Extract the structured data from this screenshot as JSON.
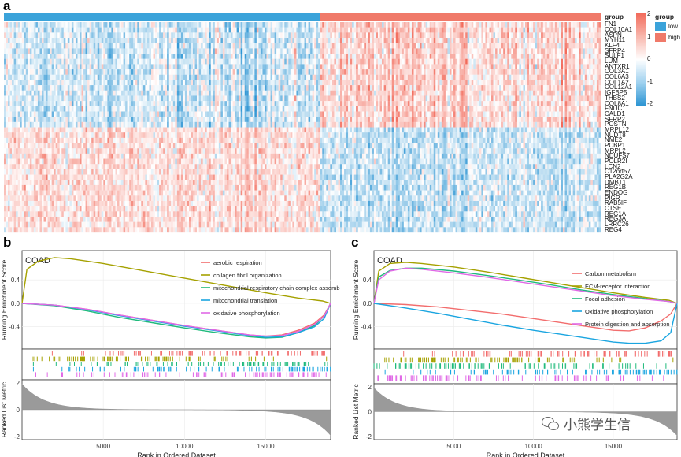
{
  "panels": {
    "a": "a",
    "b": "b",
    "c": "c"
  },
  "heatmap": {
    "genes": [
      "FN1",
      "COL10A1",
      "ASPN",
      "MYH11",
      "KLF4",
      "SFRP4",
      "SULF1",
      "LUM",
      "ANTXR1",
      "COL3A1",
      "COL6A3",
      "COL1A2",
      "COL12A1",
      "IGFBP5",
      "THBS2",
      "COL8A1",
      "FNDC1",
      "CALD1",
      "SFRP2",
      "POSTN",
      "MRPL12",
      "NUDT8",
      "NME2",
      "PCBP1",
      "MRPL2",
      "NDUFS7",
      "POLR2I",
      "LCN2",
      "C12orf57",
      "PLA2G2A",
      "DMBT1",
      "REG1B",
      "ENDOG",
      "PIGR",
      "RAB5IF",
      "CTSE",
      "REG1A",
      "REG3A",
      "LRRC26",
      "REG4"
    ],
    "n_samples": 300,
    "group_legend": {
      "title": "group",
      "items": [
        {
          "label": "low",
          "color": "#3ba3da"
        },
        {
          "label": "high",
          "color": "#f07a6a"
        }
      ]
    },
    "top_annotation_label": "group",
    "scale_legend": {
      "ticks": [
        "2",
        "1",
        "0",
        "-1",
        "-2"
      ],
      "colors": [
        "#f26b5b",
        "#ffffff",
        "#2d95d3"
      ]
    }
  },
  "gsea_b": {
    "title": "COAD",
    "ylabel_top": "Running Enrichment Score",
    "ylabel_bottom": "Ranked List Metric",
    "xlabel": "Rank in Ordered Dataset"
  },
  "gsea_c": {
    "title": "COAD",
    "ylabel_top": "Running Enrichment Score",
    "ylabel_bottom": "Ranked List Metric",
    "xlabel": "Rank in Ordered Dataset"
  },
  "watermark": "小熊学生信",
  "chart_data": [
    {
      "type": "heatmap",
      "title": "",
      "rows": [
        "FN1",
        "COL10A1",
        "ASPN",
        "MYH11",
        "KLF4",
        "SFRP4",
        "SULF1",
        "LUM",
        "ANTXR1",
        "COL3A1",
        "COL6A3",
        "COL1A2",
        "COL12A1",
        "IGFBP5",
        "THBS2",
        "COL8A1",
        "FNDC1",
        "CALD1",
        "SFRP2",
        "POSTN",
        "MRPL12",
        "NUDT8",
        "NME2",
        "PCBP1",
        "MRPL2",
        "NDUFS7",
        "POLR2I",
        "LCN2",
        "C12orf57",
        "PLA2G2A",
        "DMBT1",
        "REG1B",
        "ENDOG",
        "PIGR",
        "RAB5IF",
        "CTSE",
        "REG1A",
        "REG3A",
        "LRRC26",
        "REG4"
      ],
      "column_groups": [
        {
          "name": "low",
          "fraction": 0.53
        },
        {
          "name": "high",
          "fraction": 0.47
        }
      ],
      "scale_range": [
        -2,
        2
      ]
    },
    {
      "type": "line",
      "title": "COAD",
      "xlabel": "Rank in Ordered Dataset",
      "ylabel": "Running Enrichment Score",
      "xlim": [
        0,
        19000
      ],
      "ylim": [
        -0.78,
        0.9
      ],
      "xticks": [
        5000,
        10000,
        15000
      ],
      "yticks": [
        0.4,
        0.0,
        -0.4
      ],
      "legend_position": "top-right",
      "series": [
        {
          "name": "aerobic respiration",
          "color": "#f26d6d",
          "x": [
            0,
            2000,
            4000,
            6000,
            8000,
            10000,
            12000,
            14000,
            15000,
            16000,
            17000,
            18000,
            18600,
            19000
          ],
          "values": [
            0,
            -0.03,
            -0.1,
            -0.2,
            -0.29,
            -0.38,
            -0.46,
            -0.54,
            -0.56,
            -0.54,
            -0.46,
            -0.34,
            -0.2,
            0
          ]
        },
        {
          "name": "collagen fibril organization",
          "color": "#a5a100",
          "x": [
            0,
            300,
            1000,
            2000,
            3000,
            5000,
            7000,
            9000,
            11000,
            13000,
            15000,
            17000,
            18500,
            19000
          ],
          "values": [
            0,
            0.58,
            0.72,
            0.78,
            0.76,
            0.68,
            0.58,
            0.48,
            0.38,
            0.28,
            0.18,
            0.09,
            0.04,
            0
          ]
        },
        {
          "name": "mitochondrial respiratory chain complex assembly",
          "color": "#1fba7c",
          "x": [
            0,
            2000,
            4000,
            6000,
            8000,
            10000,
            12000,
            14000,
            15000,
            16000,
            17000,
            18000,
            18600,
            19000
          ],
          "values": [
            0,
            -0.04,
            -0.13,
            -0.24,
            -0.33,
            -0.42,
            -0.5,
            -0.57,
            -0.59,
            -0.58,
            -0.5,
            -0.38,
            -0.22,
            0
          ]
        },
        {
          "name": "mitochondrial translation",
          "color": "#1aa5e0",
          "x": [
            0,
            2000,
            4000,
            6000,
            8000,
            10000,
            12000,
            14000,
            15000,
            16000,
            17000,
            18000,
            18600,
            19000
          ],
          "values": [
            0,
            -0.03,
            -0.11,
            -0.21,
            -0.3,
            -0.39,
            -0.47,
            -0.55,
            -0.58,
            -0.57,
            -0.5,
            -0.4,
            -0.26,
            0
          ]
        },
        {
          "name": "oxidative phosphorylation",
          "color": "#e069e6",
          "x": [
            0,
            2000,
            4000,
            6000,
            8000,
            10000,
            12000,
            14000,
            15000,
            16000,
            17000,
            18000,
            18600,
            19000
          ],
          "values": [
            0,
            -0.03,
            -0.1,
            -0.2,
            -0.29,
            -0.38,
            -0.46,
            -0.54,
            -0.56,
            -0.55,
            -0.48,
            -0.36,
            -0.22,
            0
          ]
        }
      ]
    },
    {
      "type": "line",
      "title": "COAD",
      "xlabel": "Rank in Ordered Dataset",
      "ylabel": "Running Enrichment Score",
      "xlim": [
        0,
        19000
      ],
      "ylim": [
        -0.78,
        0.9
      ],
      "xticks": [
        5000,
        10000,
        15000
      ],
      "yticks": [
        0.4,
        0.0,
        -0.4
      ],
      "legend_position": "top-right",
      "series": [
        {
          "name": "Carbon metabolism",
          "color": "#f26d6d",
          "x": [
            0,
            2000,
            4000,
            6000,
            8000,
            10000,
            12000,
            14000,
            15000,
            16000,
            17000,
            18000,
            18600,
            19000
          ],
          "values": [
            0,
            -0.02,
            -0.06,
            -0.12,
            -0.18,
            -0.26,
            -0.34,
            -0.42,
            -0.46,
            -0.47,
            -0.42,
            -0.3,
            -0.18,
            0
          ]
        },
        {
          "name": "ECM-receptor interaction",
          "color": "#a5a100",
          "x": [
            0,
            300,
            1000,
            2000,
            3000,
            5000,
            7000,
            9000,
            11000,
            13000,
            15000,
            17000,
            18500,
            19000
          ],
          "values": [
            0,
            0.55,
            0.68,
            0.7,
            0.68,
            0.62,
            0.54,
            0.45,
            0.36,
            0.27,
            0.18,
            0.1,
            0.05,
            0
          ]
        },
        {
          "name": "Focal adhesion",
          "color": "#1fba7c",
          "x": [
            0,
            300,
            1000,
            2000,
            3000,
            5000,
            7000,
            9000,
            11000,
            13000,
            15000,
            17000,
            18500,
            19000
          ],
          "values": [
            0,
            0.45,
            0.56,
            0.6,
            0.6,
            0.55,
            0.48,
            0.4,
            0.32,
            0.23,
            0.15,
            0.08,
            0.03,
            0
          ]
        },
        {
          "name": "Oxidative phosphorylation",
          "color": "#1aa5e0",
          "x": [
            0,
            2000,
            4000,
            6000,
            8000,
            10000,
            12000,
            14000,
            15000,
            16000,
            17000,
            18000,
            18600,
            19000
          ],
          "values": [
            0,
            -0.08,
            -0.17,
            -0.27,
            -0.37,
            -0.46,
            -0.54,
            -0.62,
            -0.66,
            -0.68,
            -0.68,
            -0.64,
            -0.5,
            0
          ]
        },
        {
          "name": "Protein digestion and absorption",
          "color": "#e069e6",
          "x": [
            0,
            300,
            1000,
            2000,
            3000,
            5000,
            7000,
            9000,
            11000,
            13000,
            15000,
            17000,
            18500,
            19000
          ],
          "values": [
            0,
            0.4,
            0.55,
            0.6,
            0.58,
            0.52,
            0.45,
            0.37,
            0.29,
            0.21,
            0.13,
            0.07,
            0.03,
            0
          ]
        }
      ]
    }
  ]
}
